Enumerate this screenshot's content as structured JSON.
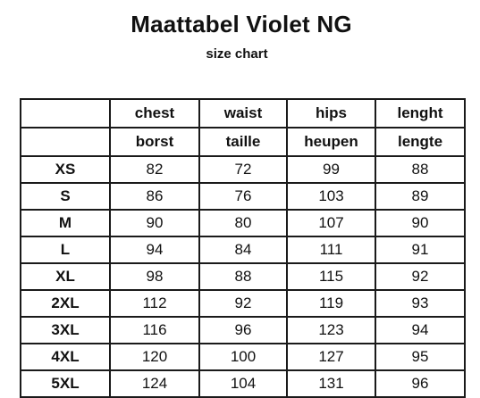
{
  "title": "Maattabel Violet NG",
  "subtitle": "size chart",
  "header_en": [
    "",
    "chest",
    "waist",
    "hips",
    "lenght"
  ],
  "header_nl": [
    "",
    "borst",
    "taille",
    "heupen",
    "lengte"
  ],
  "rows": [
    {
      "size": "XS",
      "chest": "82",
      "waist": "72",
      "hips": "99",
      "length": "88"
    },
    {
      "size": "S",
      "chest": "86",
      "waist": "76",
      "hips": "103",
      "length": "89"
    },
    {
      "size": "M",
      "chest": "90",
      "waist": "80",
      "hips": "107",
      "length": "90"
    },
    {
      "size": "L",
      "chest": "94",
      "waist": "84",
      "hips": "111",
      "length": "91"
    },
    {
      "size": "XL",
      "chest": "98",
      "waist": "88",
      "hips": "115",
      "length": "92"
    },
    {
      "size": "2XL",
      "chest": "112",
      "waist": "92",
      "hips": "119",
      "length": "93"
    },
    {
      "size": "3XL",
      "chest": "116",
      "waist": "96",
      "hips": "123",
      "length": "94"
    },
    {
      "size": "4XL",
      "chest": "120",
      "waist": "100",
      "hips": "127",
      "length": "95"
    },
    {
      "size": "5XL",
      "chest": "124",
      "waist": "104",
      "hips": "131",
      "length": "96"
    }
  ]
}
